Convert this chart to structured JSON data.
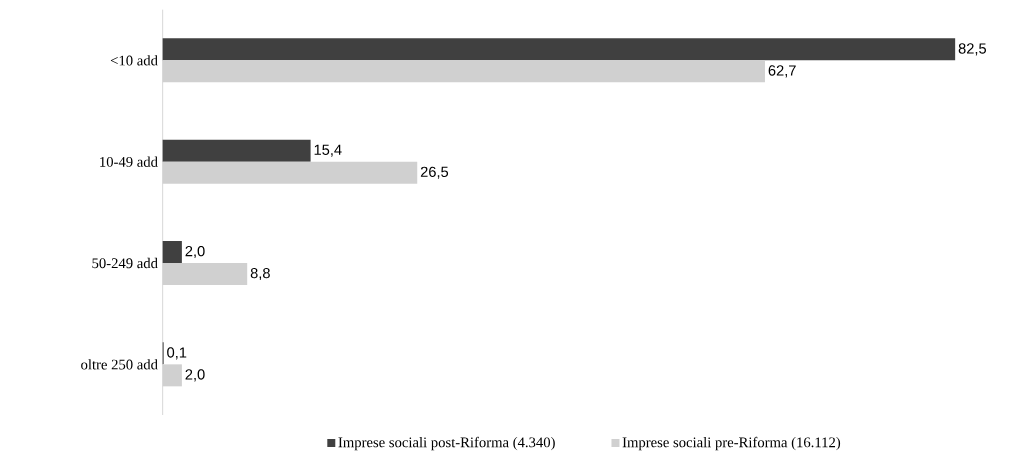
{
  "chart_data": {
    "type": "bar",
    "orientation": "horizontal",
    "categories": [
      "<10 add",
      "10-49 add",
      "50-249 add",
      "oltre 250 add"
    ],
    "series": [
      {
        "name": "Imprese sociali post-Riforma (4.340)",
        "color": "#404040",
        "values": [
          82.5,
          15.4,
          2.0,
          0.1
        ],
        "value_labels": [
          "82,5",
          "15,4",
          "2,0",
          "0,1"
        ]
      },
      {
        "name": "Imprese sociali pre-Riforma (16.112)",
        "color": "#d0d0d0",
        "values": [
          62.7,
          26.5,
          8.8,
          2.0
        ],
        "value_labels": [
          "62,7",
          "26,5",
          "8,8",
          "2,0"
        ]
      }
    ],
    "legend": "bottom"
  }
}
